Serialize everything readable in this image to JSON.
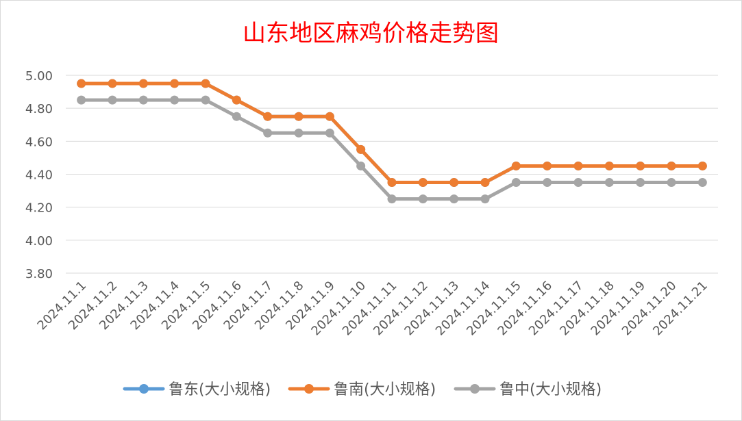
{
  "chart_data": {
    "type": "line",
    "title": "山东地区麻鸡价格走势图",
    "title_color": "#ff0000",
    "categories": [
      "2024.11.1",
      "2024.11.2",
      "2024.11.3",
      "2024.11.4",
      "2024.11.5",
      "2024.11.6",
      "2024.11.7",
      "2024.11.8",
      "2024.11.9",
      "2024.11.10",
      "2024.11.11",
      "2024.11.12",
      "2024.11.13",
      "2024.11.14",
      "2024.11.15",
      "2024.11.16",
      "2024.11.17",
      "2024.11.18",
      "2024.11.19",
      "2024.11.20",
      "2024.11.21"
    ],
    "ylim": [
      3.8,
      5.0
    ],
    "yticks": [
      "5.00",
      "4.80",
      "4.60",
      "4.40",
      "4.20",
      "4.00",
      "3.80"
    ],
    "grid": true,
    "legend_position": "bottom",
    "series": [
      {
        "name": "鲁东(大小规格)",
        "color": "#5b9bd5",
        "values": [
          4.95,
          4.95,
          4.95,
          4.95,
          4.95,
          4.85,
          4.75,
          4.75,
          4.75,
          4.55,
          4.35,
          4.35,
          4.35,
          4.35,
          4.45,
          4.45,
          4.45,
          4.45,
          4.45,
          4.45,
          4.45
        ]
      },
      {
        "name": "鲁南(大小规格)",
        "color": "#ed7d31",
        "values": [
          4.95,
          4.95,
          4.95,
          4.95,
          4.95,
          4.85,
          4.75,
          4.75,
          4.75,
          4.55,
          4.35,
          4.35,
          4.35,
          4.35,
          4.45,
          4.45,
          4.45,
          4.45,
          4.45,
          4.45,
          4.45
        ]
      },
      {
        "name": "鲁中(大小规格)",
        "color": "#a5a5a5",
        "values": [
          4.85,
          4.85,
          4.85,
          4.85,
          4.85,
          4.75,
          4.65,
          4.65,
          4.65,
          4.45,
          4.25,
          4.25,
          4.25,
          4.25,
          4.35,
          4.35,
          4.35,
          4.35,
          4.35,
          4.35,
          4.35
        ]
      }
    ]
  }
}
